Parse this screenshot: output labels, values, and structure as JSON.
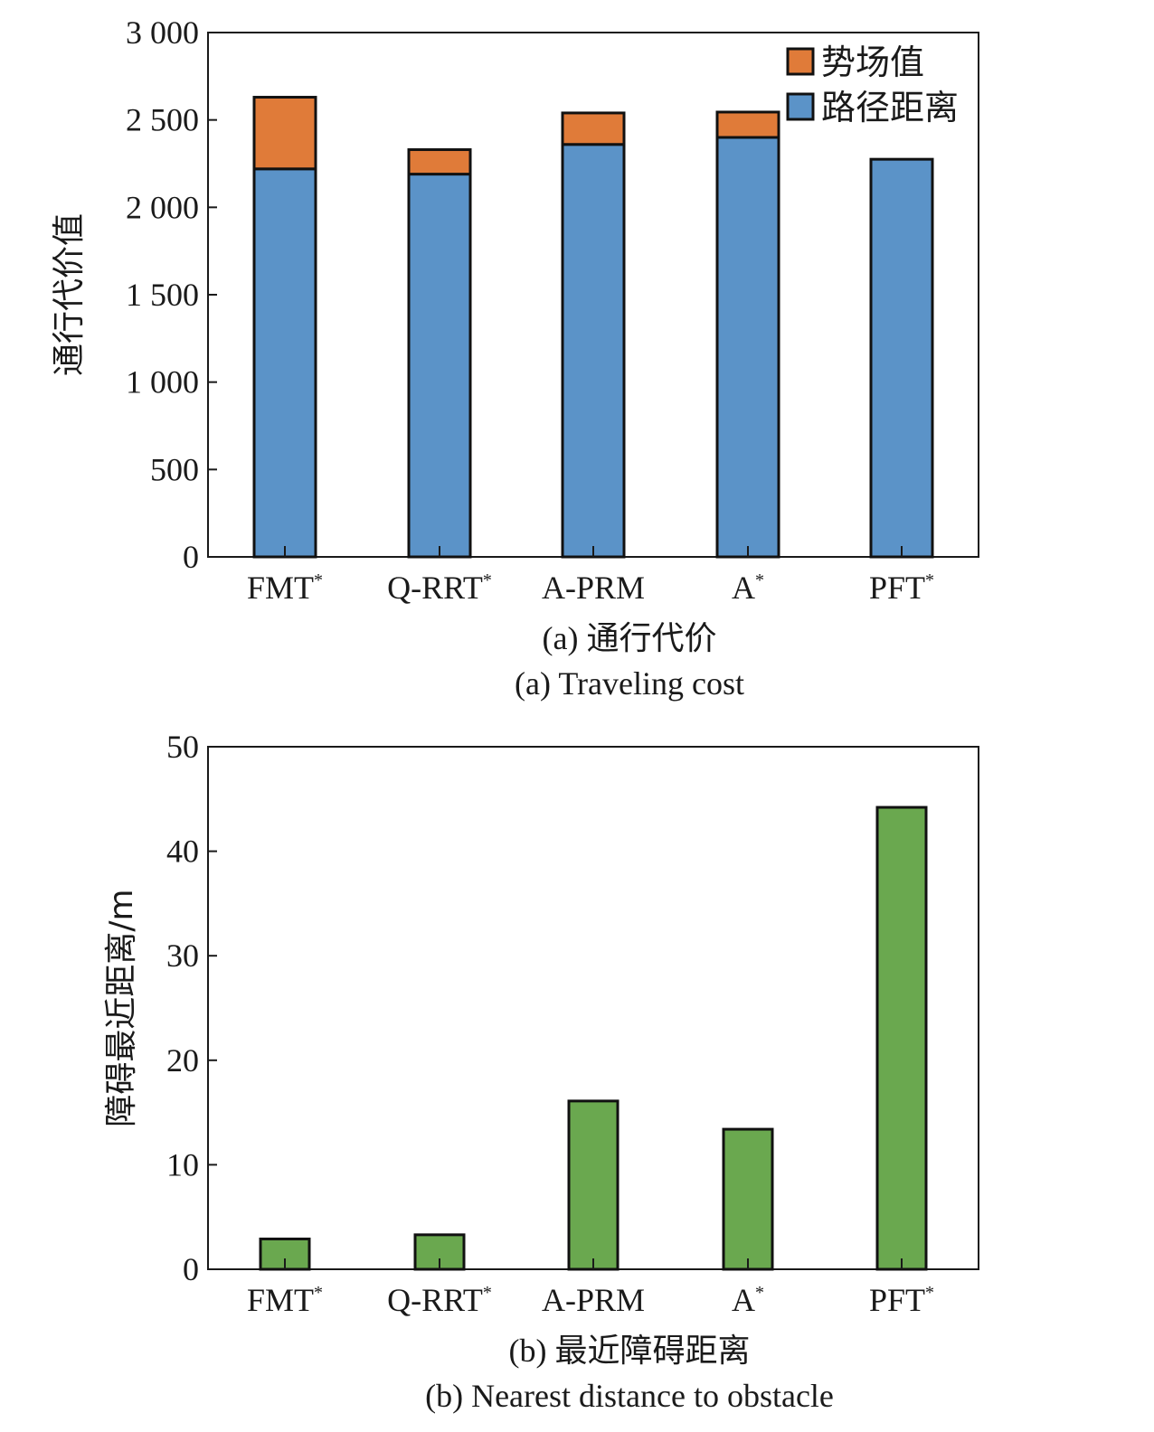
{
  "chart_data": [
    {
      "type": "bar",
      "stacked": true,
      "categories": [
        "FMT*",
        "Q-RRT*",
        "A-PRM",
        "A*",
        "PFT*"
      ],
      "category_labels": [
        {
          "base": "FMT",
          "sup": "*"
        },
        {
          "base": "Q-RRT",
          "sup": "*"
        },
        {
          "base": "A-PRM",
          "sup": ""
        },
        {
          "base": "A",
          "sup": "*"
        },
        {
          "base": "PFT",
          "sup": "*"
        }
      ],
      "series": [
        {
          "name": "路径距离",
          "color": "#5b93c8",
          "values": [
            2220,
            2190,
            2360,
            2400,
            2275
          ]
        },
        {
          "name": "势场值",
          "color": "#e07b39",
          "values": [
            410,
            140,
            180,
            145,
            0
          ]
        }
      ],
      "ylabel": "通行代价值",
      "ylim": [
        0,
        3000
      ],
      "yticks": [
        0,
        500,
        1000,
        1500,
        2000,
        2500,
        3000
      ],
      "ytick_labels": [
        "0",
        "500",
        "1 000",
        "1 500",
        "2 000",
        "2 500",
        "3 000"
      ],
      "legend_position": "top-right",
      "caption_cn": "(a) 通行代价",
      "caption_en": "(a) Traveling cost"
    },
    {
      "type": "bar",
      "categories": [
        "FMT*",
        "Q-RRT*",
        "A-PRM",
        "A*",
        "PFT*"
      ],
      "category_labels": [
        {
          "base": "FMT",
          "sup": "*"
        },
        {
          "base": "Q-RRT",
          "sup": "*"
        },
        {
          "base": "A-PRM",
          "sup": ""
        },
        {
          "base": "A",
          "sup": "*"
        },
        {
          "base": "PFT",
          "sup": "*"
        }
      ],
      "series": [
        {
          "color": "#6aa84f",
          "values": [
            2.9,
            3.3,
            16.1,
            13.4,
            44.2
          ]
        }
      ],
      "ylabel": "障碍最近距离/m",
      "ylim": [
        0,
        50
      ],
      "yticks": [
        0,
        10,
        20,
        30,
        40,
        50
      ],
      "ytick_labels": [
        "0",
        "10",
        "20",
        "30",
        "40",
        "50"
      ],
      "caption_cn": "(b) 最近障碍距离",
      "caption_en": "(b) Nearest distance to obstacle"
    }
  ]
}
